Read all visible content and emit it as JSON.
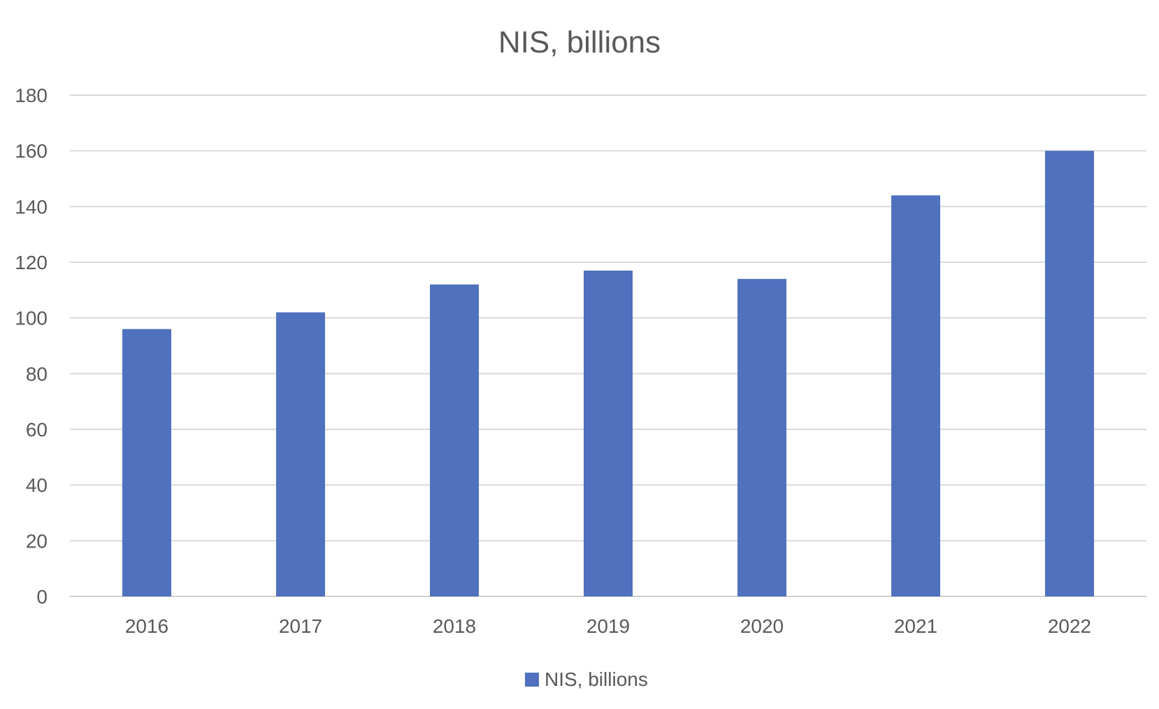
{
  "chart_data": {
    "type": "bar",
    "title": "NIS, billions",
    "categories": [
      "2016",
      "2017",
      "2018",
      "2019",
      "2020",
      "2021",
      "2022"
    ],
    "series": [
      {
        "name": "NIS, billions",
        "values": [
          96,
          102,
          112,
          117,
          114,
          144,
          160
        ],
        "color": "#4f71be"
      }
    ],
    "ylim": [
      0,
      180
    ],
    "yticks": [
      0,
      20,
      40,
      60,
      80,
      100,
      120,
      140,
      160,
      180
    ],
    "grid": true,
    "legend_position": "bottom"
  }
}
